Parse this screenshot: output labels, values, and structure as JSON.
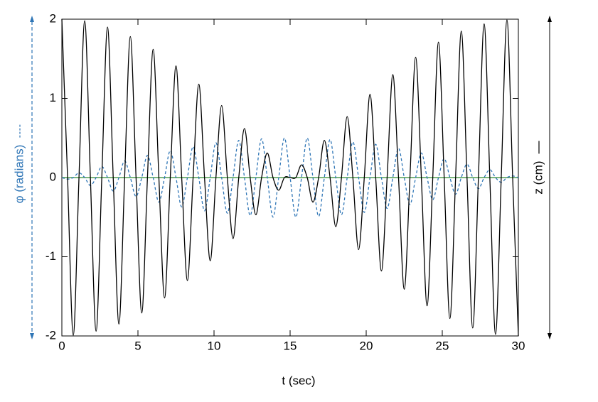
{
  "chart_data": {
    "type": "line",
    "xlabel": "t (sec)",
    "xlim": [
      0,
      30
    ],
    "xticks": [
      0,
      5,
      10,
      15,
      20,
      25,
      30
    ],
    "ylim": [
      -2,
      2
    ],
    "yticks": [
      -2,
      -1,
      0,
      1,
      2
    ],
    "x": [
      0,
      0.375,
      0.75,
      1.125,
      1.5,
      1.875,
      2.25,
      2.625,
      3,
      3.375,
      3.75,
      4.125,
      4.5,
      4.875,
      5.25,
      5.625,
      6,
      6.375,
      6.75,
      7.125,
      7.5,
      7.875,
      8.25,
      8.625,
      9,
      9.375,
      9.75,
      10.125,
      10.5,
      10.875,
      11.25,
      11.625,
      12,
      12.375,
      12.75,
      13.125,
      13.5,
      13.875,
      14.25,
      14.625,
      15,
      15.375,
      15.75,
      16.125,
      16.5,
      16.875,
      17.25,
      17.625,
      18,
      18.375,
      18.75,
      19.125,
      19.5,
      19.875,
      20.25,
      20.625,
      21,
      21.375,
      21.75,
      22.125,
      22.5,
      22.875,
      23.25,
      23.625,
      24,
      24.375,
      24.75,
      25.125,
      25.5,
      25.875,
      26.25,
      26.625,
      27,
      27.375,
      27.75,
      28.125,
      28.5,
      28.875,
      29.25,
      29.625,
      30
    ],
    "series": [
      {
        "name": "φ (radians)",
        "color": "#2e75b6",
        "dashed": true,
        "values": [
          0,
          -0.02,
          0,
          0.06,
          0,
          -0.1,
          0,
          0.14,
          0,
          -0.17,
          0,
          0.21,
          0,
          -0.24,
          0,
          0.28,
          0,
          -0.31,
          0,
          0.34,
          0,
          -0.37,
          0,
          0.39,
          0,
          -0.42,
          0,
          0.44,
          0,
          -0.45,
          0,
          0.47,
          0,
          -0.48,
          0,
          0.49,
          0,
          -0.5,
          0,
          0.5,
          0,
          -0.5,
          0,
          0.5,
          0,
          -0.49,
          0,
          0.48,
          0,
          -0.47,
          0,
          0.45,
          0,
          -0.44,
          0,
          0.42,
          0,
          -0.39,
          0,
          0.37,
          0,
          -0.34,
          0,
          0.31,
          0,
          -0.28,
          0,
          0.24,
          0,
          -0.21,
          0,
          0.17,
          0,
          -0.14,
          0,
          0.1,
          0,
          -0.06,
          0,
          0.02,
          0
        ]
      },
      {
        "name": "z (cm)",
        "color": "#000000",
        "dashed": false,
        "values": [
          2,
          0,
          -1.99,
          0,
          1.98,
          0,
          -1.94,
          0,
          1.9,
          0,
          -1.85,
          0,
          1.78,
          0,
          -1.71,
          0,
          1.62,
          0,
          -1.52,
          0,
          1.41,
          0,
          -1.3,
          0,
          1.18,
          0,
          -1.05,
          0,
          0.91,
          0,
          -0.77,
          0,
          0.62,
          0,
          -0.47,
          0,
          0.31,
          0,
          -0.16,
          0,
          0,
          0,
          0.16,
          0,
          -0.31,
          0,
          0.47,
          0,
          -0.62,
          0,
          0.77,
          0,
          -0.91,
          0,
          1.05,
          0,
          -1.18,
          0,
          1.3,
          0,
          -1.41,
          0,
          1.52,
          0,
          -1.62,
          0,
          1.71,
          0,
          -1.78,
          0,
          1.85,
          0,
          -1.9,
          0,
          1.94,
          0,
          -1.98,
          0,
          1.99,
          0,
          -2
        ]
      }
    ],
    "zero_line_color": "#2e8b2e"
  }
}
